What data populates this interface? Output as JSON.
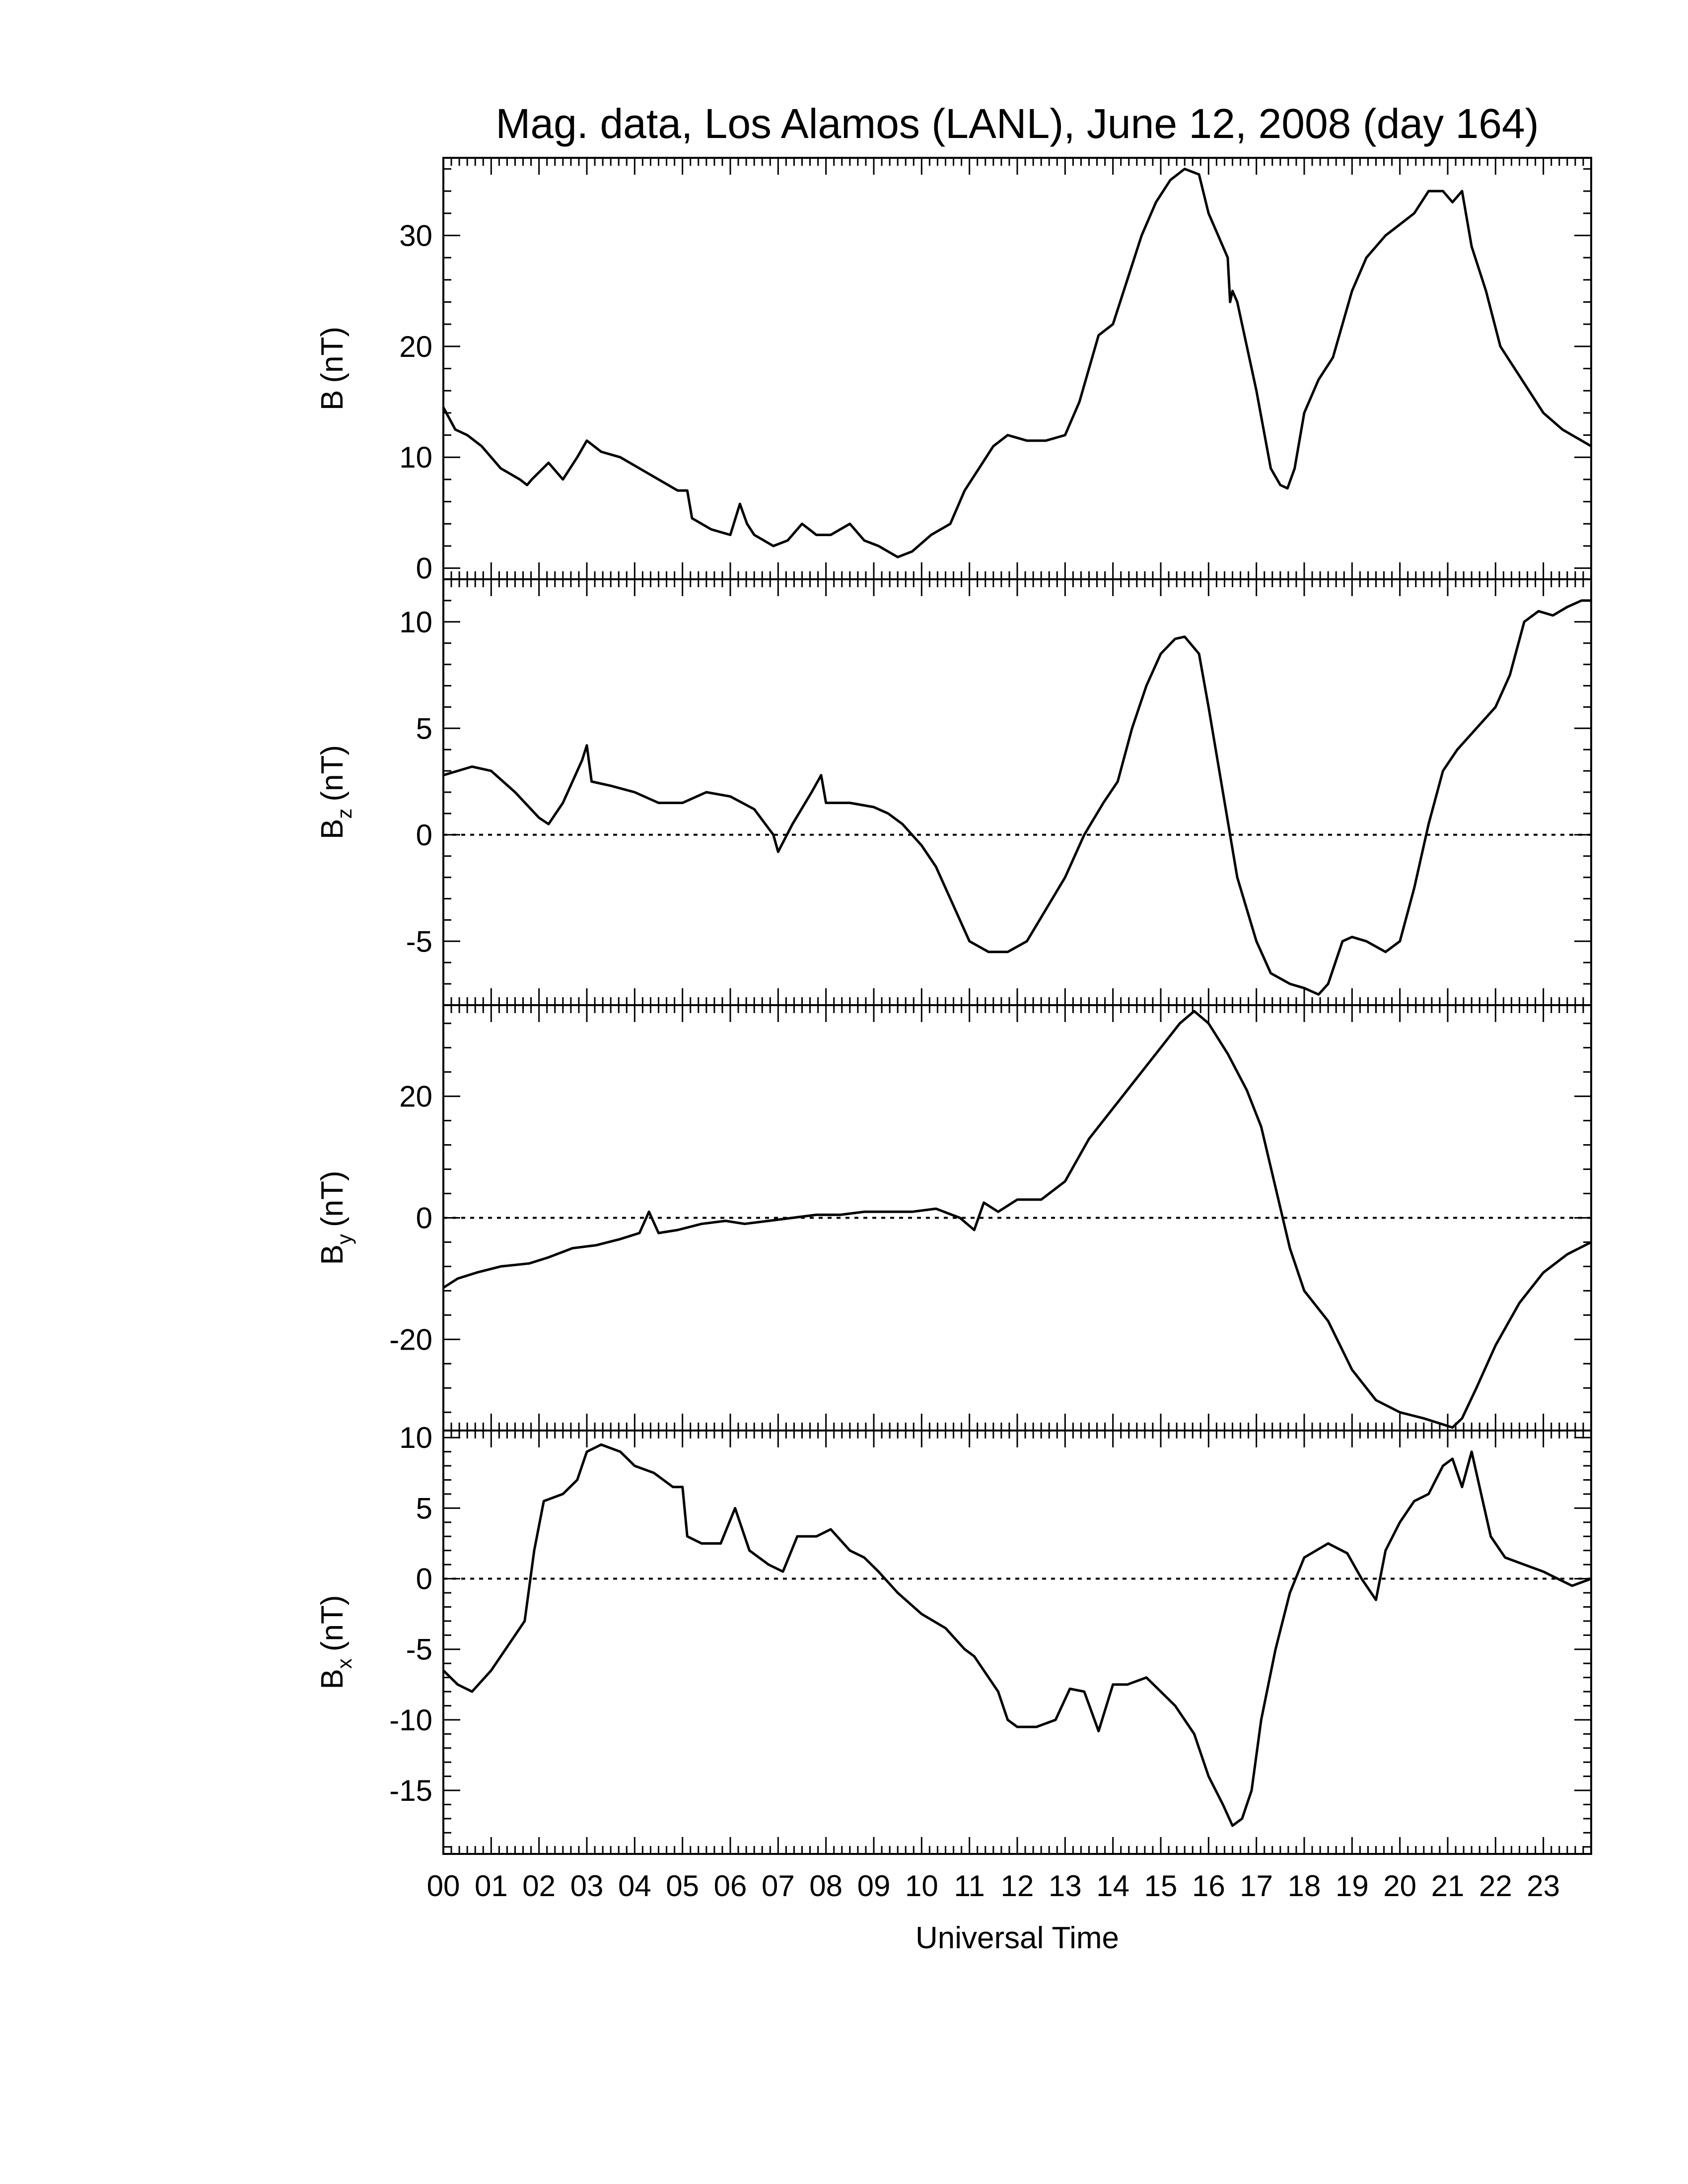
{
  "chart_data": {
    "type": "line",
    "title": "Mag. data, Los Alamos (LANL), June 12, 2008 (day 164)",
    "xlabel": "Universal Time",
    "x_tick_labels": [
      "00",
      "01",
      "02",
      "03",
      "04",
      "05",
      "06",
      "07",
      "08",
      "09",
      "10",
      "11",
      "12",
      "13",
      "14",
      "15",
      "16",
      "17",
      "18",
      "19",
      "20",
      "21",
      "22",
      "23"
    ],
    "xlim": [
      0,
      24
    ],
    "line_color": "#000000",
    "panels": [
      {
        "id": "B",
        "ylabel_main": "B",
        "ylabel_sub": "",
        "ylabel_unit": "(nT)",
        "ylim": [
          -1,
          37
        ],
        "yticks": [
          0,
          10,
          20,
          30
        ],
        "ytick_labels": [
          "0",
          "10",
          "20",
          "30"
        ],
        "zero_line": false,
        "series": [
          {
            "x": [
              0,
              0.25,
              0.5,
              0.8,
              1.2,
              1.6,
              1.75,
              1.85,
              2.2,
              2.5,
              2.8,
              3.0,
              3.3,
              3.7,
              4.1,
              4.5,
              4.9,
              5.1,
              5.2,
              5.6,
              6.0,
              6.2,
              6.35,
              6.5,
              6.9,
              7.2,
              7.5,
              7.8,
              8.1,
              8.5,
              8.8,
              9.1,
              9.5,
              9.8,
              10.2,
              10.6,
              10.9,
              11.2,
              11.5,
              11.8,
              12.2,
              12.6,
              13.0,
              13.3,
              13.7,
              14.0,
              14.3,
              14.6,
              14.9,
              15.2,
              15.5,
              15.8,
              16.0,
              16.2,
              16.4,
              16.45,
              16.5,
              16.6,
              16.8,
              17.0,
              17.3,
              17.5,
              17.65,
              17.8,
              18.0,
              18.3,
              18.6,
              19.0,
              19.3,
              19.7,
              20.0,
              20.3,
              20.6,
              20.9,
              21.1,
              21.3,
              21.5,
              21.8,
              22.1,
              22.4,
              22.7,
              23.0,
              23.4,
              23.8,
              24.0
            ],
            "y": [
              14.5,
              12.5,
              12,
              11,
              9,
              8,
              7.5,
              8,
              9.5,
              8,
              10,
              11.5,
              10.5,
              10,
              9,
              8,
              7,
              7,
              4.5,
              3.5,
              3,
              5.8,
              4,
              3,
              2,
              2.5,
              4,
              3,
              3,
              4,
              2.5,
              2,
              1,
              1.5,
              3,
              4,
              7,
              9,
              11,
              12,
              11.5,
              11.5,
              12,
              15,
              21,
              22,
              26,
              30,
              33,
              35,
              36,
              35.5,
              32,
              30,
              28,
              24,
              25,
              24,
              20,
              16,
              9,
              7.5,
              7.2,
              9,
              14,
              17,
              19,
              25,
              28,
              30,
              31,
              32,
              34,
              34,
              33,
              34,
              29,
              25,
              20,
              18,
              16,
              14,
              12.5,
              11.5,
              11
            ]
          }
        ]
      },
      {
        "id": "Bz",
        "ylabel_main": "B",
        "ylabel_sub": "z",
        "ylabel_unit": "(nT)",
        "ylim": [
          -8,
          12
        ],
        "yticks": [
          -5,
          0,
          5,
          10
        ],
        "ytick_labels": [
          "-5",
          "0",
          "5",
          "10"
        ],
        "zero_line": true,
        "series": [
          {
            "x": [
              0,
              0.3,
              0.6,
              1.0,
              1.5,
              2.0,
              2.2,
              2.5,
              2.9,
              3.0,
              3.1,
              3.5,
              4.0,
              4.5,
              5.0,
              5.5,
              6.0,
              6.5,
              6.9,
              7.0,
              7.3,
              7.7,
              7.9,
              8.0,
              8.5,
              9.0,
              9.3,
              9.6,
              10.0,
              10.3,
              10.7,
              11.0,
              11.4,
              11.8,
              12.2,
              12.6,
              13.0,
              13.4,
              13.8,
              14.1,
              14.4,
              14.7,
              15.0,
              15.3,
              15.5,
              15.8,
              16.0,
              16.3,
              16.6,
              17.0,
              17.3,
              17.7,
              18.0,
              18.3,
              18.5,
              18.8,
              19.0,
              19.3,
              19.7,
              20.0,
              20.3,
              20.6,
              20.9,
              21.2,
              21.6,
              22.0,
              22.3,
              22.6,
              22.9,
              23.2,
              23.5,
              23.8,
              24.0
            ],
            "y": [
              2.8,
              3,
              3.2,
              3,
              2,
              0.8,
              0.5,
              1.5,
              3.5,
              4.2,
              2.5,
              2.3,
              2,
              1.5,
              1.5,
              2,
              1.8,
              1.2,
              0,
              -0.8,
              0.5,
              2,
              2.8,
              1.5,
              1.5,
              1.3,
              1,
              0.5,
              -0.5,
              -1.5,
              -3.5,
              -5,
              -5.5,
              -5.5,
              -5,
              -3.5,
              -2,
              0,
              1.5,
              2.5,
              5,
              7,
              8.5,
              9.2,
              9.3,
              8.5,
              6,
              2,
              -2,
              -5,
              -6.5,
              -7,
              -7.2,
              -7.5,
              -7,
              -5,
              -4.8,
              -5,
              -5.5,
              -5,
              -2.5,
              0.5,
              3,
              4,
              5,
              6,
              7.5,
              10,
              10.5,
              10.3,
              10.7,
              11,
              11
            ]
          }
        ]
      },
      {
        "id": "By",
        "ylabel_main": "B",
        "ylabel_sub": "y",
        "ylabel_unit": "(nT)",
        "ylim": [
          -35,
          35
        ],
        "yticks": [
          -20,
          0,
          20
        ],
        "ytick_labels": [
          "-20",
          "0",
          "20"
        ],
        "zero_line": true,
        "series": [
          {
            "x": [
              0,
              0.3,
              0.7,
              1.2,
              1.8,
              2.2,
              2.7,
              3.2,
              3.7,
              4.1,
              4.3,
              4.5,
              4.9,
              5.4,
              5.9,
              6.3,
              6.8,
              7.3,
              7.8,
              8.3,
              8.8,
              9.3,
              9.8,
              10.3,
              10.8,
              11.1,
              11.3,
              11.6,
              12.0,
              12.5,
              13.0,
              13.5,
              14.0,
              14.5,
              15.0,
              15.4,
              15.7,
              16.0,
              16.4,
              16.8,
              17.1,
              17.4,
              17.7,
              18.0,
              18.5,
              19.0,
              19.5,
              20.0,
              20.5,
              20.9,
              21.1,
              21.3,
              21.6,
              22.0,
              22.5,
              23.0,
              23.5,
              24.0
            ],
            "y": [
              -11.5,
              -10,
              -9,
              -8,
              -7.5,
              -6.5,
              -5,
              -4.5,
              -3.5,
              -2.5,
              1,
              -2.5,
              -2,
              -1,
              -0.5,
              -1,
              -0.5,
              0,
              0.5,
              0.5,
              1,
              1,
              1,
              1.5,
              0,
              -2,
              2.5,
              1,
              3,
              3,
              6,
              13,
              18,
              23,
              28,
              32,
              34,
              32,
              27,
              21,
              15,
              5,
              -5,
              -12,
              -17,
              -25,
              -30,
              -32,
              -33,
              -34,
              -34.5,
              -33,
              -28,
              -21,
              -14,
              -9,
              -6,
              -4
            ]
          }
        ]
      },
      {
        "id": "Bx",
        "ylabel_main": "B",
        "ylabel_sub": "x",
        "ylabel_unit": "(nT)",
        "ylim": [
          -19.5,
          10.5
        ],
        "yticks": [
          -15,
          -10,
          -5,
          0,
          5,
          10
        ],
        "ytick_labels": [
          "-15",
          "-10",
          "-5",
          "0",
          "5",
          "10"
        ],
        "zero_line": true,
        "series": [
          {
            "x": [
              0,
              0.3,
              0.6,
              1.0,
              1.4,
              1.7,
              1.9,
              2.1,
              2.5,
              2.8,
              3.0,
              3.3,
              3.7,
              4.0,
              4.4,
              4.8,
              5.0,
              5.1,
              5.4,
              5.8,
              6.1,
              6.4,
              6.8,
              7.1,
              7.4,
              7.8,
              8.1,
              8.5,
              8.8,
              9.1,
              9.5,
              10.0,
              10.5,
              10.9,
              11.1,
              11.3,
              11.6,
              11.8,
              12.0,
              12.4,
              12.8,
              13.1,
              13.4,
              13.7,
              14.0,
              14.3,
              14.7,
              15.0,
              15.3,
              15.7,
              16.0,
              16.3,
              16.5,
              16.7,
              16.9,
              17.1,
              17.4,
              17.7,
              18.0,
              18.5,
              18.9,
              19.2,
              19.5,
              19.7,
              20.0,
              20.3,
              20.6,
              20.9,
              21.1,
              21.3,
              21.5,
              21.7,
              21.9,
              22.2,
              22.6,
              23.0,
              23.3,
              23.6,
              24.0
            ],
            "y": [
              -6.5,
              -7.5,
              -8,
              -6.5,
              -4.5,
              -3,
              2,
              5.5,
              6,
              7,
              9,
              9.5,
              9,
              8,
              7.5,
              6.5,
              6.5,
              3,
              2.5,
              2.5,
              5,
              2,
              1,
              0.5,
              3,
              3,
              3.5,
              2,
              1.5,
              0.5,
              -1,
              -2.5,
              -3.5,
              -5,
              -5.5,
              -6.5,
              -8,
              -10,
              -10.5,
              -10.5,
              -10,
              -7.8,
              -8,
              -10.8,
              -7.5,
              -7.5,
              -7,
              -8,
              -9,
              -11,
              -14,
              -16,
              -17.5,
              -17,
              -15,
              -10,
              -5,
              -1,
              1.5,
              2.5,
              1.8,
              0,
              -1.5,
              2,
              4,
              5.5,
              6,
              8,
              8.5,
              6.5,
              9,
              6,
              3,
              1.5,
              1,
              0.5,
              0,
              -0.5,
              0
            ]
          }
        ]
      }
    ]
  }
}
